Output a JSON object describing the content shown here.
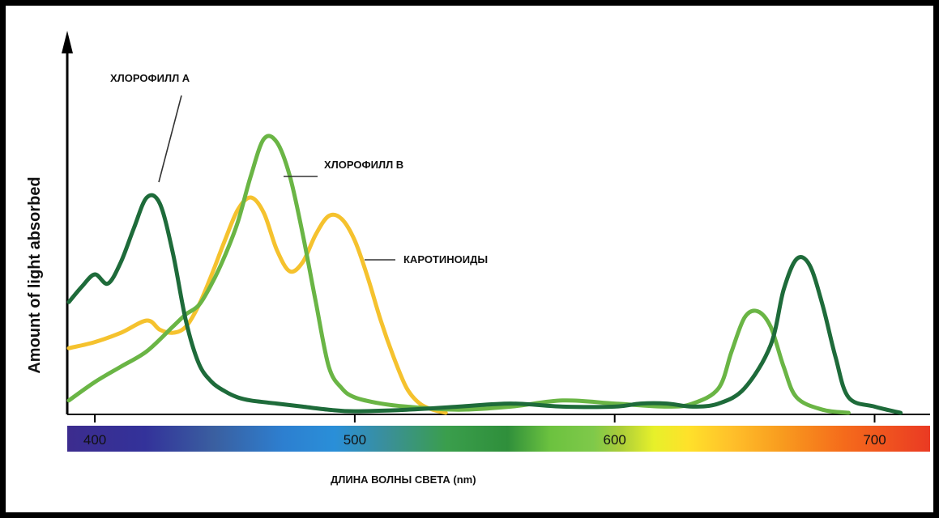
{
  "chart_data": {
    "type": "line",
    "title": "",
    "xlabel": "ДЛИНА ВОЛНЫ СВЕТА (nm)",
    "ylabel": "Amount of light absorbed",
    "xlim": [
      390,
      712
    ],
    "ylim": [
      0,
      100
    ],
    "x_ticks": [
      "400",
      "500",
      "600",
      "700"
    ],
    "x_tick_values": [
      400,
      500,
      600,
      700
    ],
    "grid": false,
    "legend": "inline labels with leader lines",
    "series": [
      {
        "name": "ХЛОРОФИЛЛ А",
        "color": "#1e6b3a",
        "x": [
          390,
          395,
          400,
          405,
          410,
          415,
          420,
          425,
          430,
          435,
          440,
          445,
          450,
          455,
          460,
          470,
          480,
          490,
          500,
          520,
          540,
          560,
          580,
          600,
          610,
          620,
          630,
          640,
          650,
          660,
          665,
          670,
          675,
          680,
          685,
          690,
          700,
          710
        ],
        "y": [
          36,
          41,
          45,
          42,
          49,
          60,
          70,
          68,
          52,
          30,
          16,
          10,
          7,
          5,
          4,
          3,
          2,
          1,
          0.5,
          1,
          2,
          3,
          2,
          2,
          3,
          3,
          2,
          3,
          8,
          22,
          40,
          50,
          48,
          35,
          18,
          5,
          2,
          0
        ]
      },
      {
        "name": "ХЛОРОФИЛЛ В",
        "color": "#6ab545",
        "x": [
          390,
          400,
          410,
          420,
          430,
          435,
          440,
          445,
          450,
          455,
          460,
          465,
          470,
          475,
          480,
          485,
          490,
          495,
          500,
          510,
          520,
          540,
          560,
          580,
          600,
          620,
          630,
          640,
          645,
          650,
          655,
          660,
          665,
          670,
          680,
          690
        ],
        "y": [
          4,
          10,
          15,
          20,
          28,
          32,
          35,
          42,
          51,
          62,
          77,
          89,
          88,
          77,
          58,
          36,
          15,
          8,
          5,
          3,
          2,
          1,
          2,
          4,
          3,
          2,
          3,
          8,
          20,
          31,
          33,
          28,
          15,
          5,
          1,
          0
        ]
      },
      {
        "name": "КАРОТИНОИДЫ",
        "color": "#f5c22e",
        "x": [
          390,
          400,
          410,
          420,
          425,
          430,
          435,
          440,
          445,
          450,
          455,
          460,
          465,
          470,
          475,
          480,
          485,
          490,
          495,
          500,
          505,
          510,
          515,
          520,
          525,
          530,
          535
        ],
        "y": [
          21,
          23,
          26,
          30,
          27,
          26,
          28,
          35,
          45,
          56,
          66,
          70,
          65,
          53,
          46,
          49,
          58,
          64,
          63,
          56,
          44,
          30,
          18,
          8,
          3,
          1,
          0
        ]
      }
    ]
  },
  "labels": {
    "chl_a": "ХЛОРОФИЛЛ А",
    "chl_b": "ХЛОРОФИЛЛ В",
    "carot": "КАРОТИНОИДЫ"
  },
  "axis": {
    "ylabel": "Amount of light absorbed",
    "xlabel": "ДЛИНА ВОЛНЫ СВЕТА (nm)"
  }
}
